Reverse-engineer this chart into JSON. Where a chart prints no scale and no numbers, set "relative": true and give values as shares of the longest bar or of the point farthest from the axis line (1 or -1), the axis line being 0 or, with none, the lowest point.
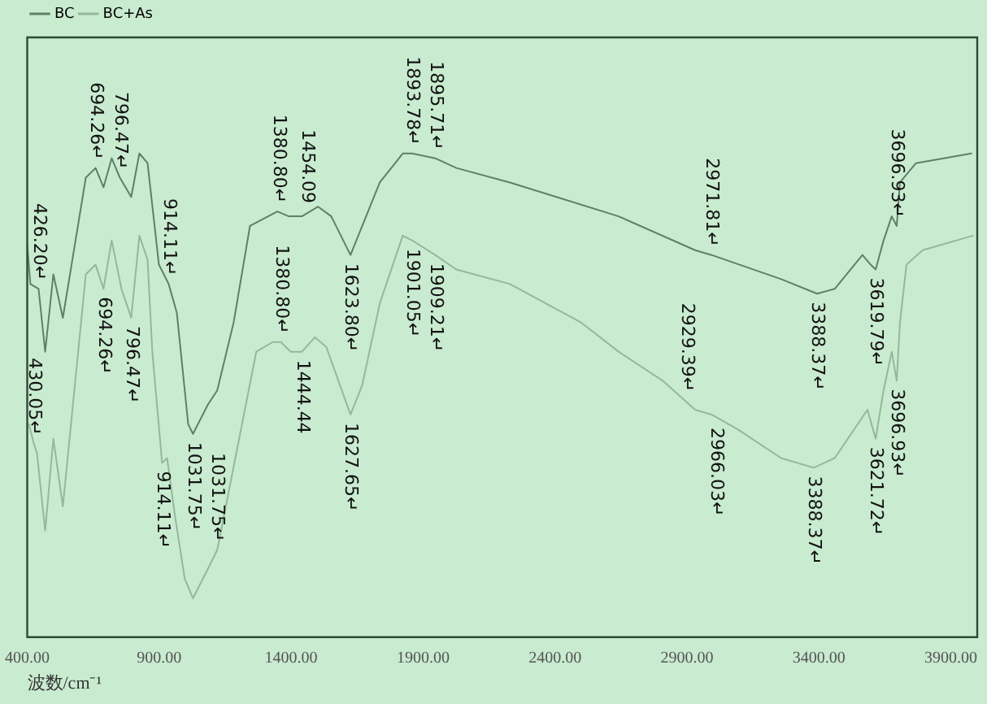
{
  "chart_data": {
    "type": "line",
    "xlabel": "波数/cm⁻¹",
    "relative": true,
    "legend": "top left",
    "marker": "none",
    "line_style": "solid",
    "grid": false,
    "xlim": [
      400,
      4000
    ],
    "xticks": [
      {
        "value": 400,
        "label": "400.00"
      },
      {
        "value": 900,
        "label": "900.00"
      },
      {
        "value": 1400,
        "label": "1400.00"
      },
      {
        "value": 1900,
        "label": "1900.00"
      },
      {
        "value": 2400,
        "label": "2400.00"
      },
      {
        "value": 2900,
        "label": "2900.00"
      },
      {
        "value": 3400,
        "label": "3400.00"
      },
      {
        "value": 3900,
        "label": "3900.00"
      }
    ],
    "series": [
      {
        "name": "BC",
        "color": "#5f8064",
        "x": [
          400,
          412,
          443,
          468,
          499,
          535,
          622,
          659,
          689,
          720,
          751,
          794,
          825,
          856,
          899,
          936,
          967,
          1010,
          1028,
          1084,
          1120,
          1182,
          1244,
          1348,
          1391,
          1441,
          1502,
          1552,
          1625,
          1736,
          1823,
          1859,
          1946,
          2026,
          2229,
          2641,
          2931,
          2993,
          3257,
          3393,
          3460,
          3565,
          3596,
          3615,
          3645,
          3676,
          3695,
          3707,
          3768,
          3978
        ],
        "values": [
          0.81,
          0.73,
          0.72,
          0.59,
          0.75,
          0.66,
          0.95,
          0.97,
          0.93,
          0.99,
          0.95,
          0.91,
          1.0,
          0.98,
          0.77,
          0.73,
          0.67,
          0.44,
          0.42,
          0.48,
          0.51,
          0.65,
          0.85,
          0.88,
          0.87,
          0.87,
          0.89,
          0.87,
          0.79,
          0.94,
          1.0,
          1.0,
          0.99,
          0.97,
          0.94,
          0.87,
          0.8,
          0.79,
          0.74,
          0.71,
          0.72,
          0.79,
          0.77,
          0.76,
          0.82,
          0.87,
          0.85,
          0.94,
          0.98,
          1.0
        ]
      },
      {
        "name": "BC+As",
        "color": "#95b89b",
        "x": [
          406,
          425,
          437,
          468,
          499,
          535,
          622,
          659,
          689,
          720,
          757,
          794,
          825,
          856,
          874,
          911,
          930,
          960,
          997,
          1028,
          1084,
          1120,
          1268,
          1330,
          1361,
          1398,
          1441,
          1490,
          1533,
          1625,
          1669,
          1736,
          1823,
          1859,
          1946,
          2026,
          2229,
          2500,
          2641,
          2808,
          2931,
          2993,
          3091,
          3257,
          3380,
          3460,
          3584,
          3615,
          3645,
          3676,
          3695,
          3707,
          3732,
          3793,
          3984
        ],
        "values": [
          0.44,
          0.4,
          0.38,
          0.22,
          0.41,
          0.27,
          0.75,
          0.77,
          0.72,
          0.82,
          0.72,
          0.66,
          0.83,
          0.78,
          0.59,
          0.36,
          0.37,
          0.25,
          0.12,
          0.08,
          0.14,
          0.18,
          0.59,
          0.61,
          0.61,
          0.59,
          0.59,
          0.62,
          0.6,
          0.46,
          0.52,
          0.69,
          0.83,
          0.82,
          0.79,
          0.76,
          0.73,
          0.65,
          0.59,
          0.53,
          0.47,
          0.46,
          0.43,
          0.37,
          0.35,
          0.37,
          0.47,
          0.41,
          0.51,
          0.59,
          0.53,
          0.65,
          0.77,
          0.8,
          0.83
        ]
      }
    ],
    "annotations": [
      {
        "text": "426.20↵",
        "x": 443,
        "y": 0.72
      },
      {
        "text": "694.26↵",
        "x": 659,
        "y": 0.97
      },
      {
        "text": "796.47↵",
        "x": 751,
        "y": 0.95
      },
      {
        "text": "914.11↵",
        "x": 936,
        "y": 0.73
      },
      {
        "text": "1031.75↵",
        "x": 1028,
        "y": 0.42
      },
      {
        "text": "1380.80↵",
        "x": 1354,
        "y": 0.88
      },
      {
        "text": "1454.09",
        "x": 1459,
        "y": 0.88
      },
      {
        "text": "1623.80↵",
        "x": 1625,
        "y": 0.79
      },
      {
        "text": "1893.78↵",
        "x": 1859,
        "y": 1.0
      },
      {
        "text": "1895.71↵",
        "x": 1946,
        "y": 0.99
      },
      {
        "text": "1901.05↵",
        "x": 1859,
        "y": 0.82
      },
      {
        "text": "1909.21↵",
        "x": 1946,
        "y": 0.79
      },
      {
        "text": "2971.81↵",
        "x": 2993,
        "y": 0.79
      },
      {
        "text": "3388.37↵",
        "x": 3393,
        "y": 0.71
      },
      {
        "text": "3619.79↵",
        "x": 3615,
        "y": 0.76
      },
      {
        "text": "3696.93↵",
        "x": 3695,
        "y": 0.85
      },
      {
        "text": "430.05↵",
        "x": 425,
        "y": 0.4
      },
      {
        "text": "694.26↵",
        "x": 689,
        "y": 0.72
      },
      {
        "text": "796.47↵",
        "x": 794,
        "y": 0.66
      },
      {
        "text": "914.11↵",
        "x": 911,
        "y": 0.36
      },
      {
        "text": "1031.75↵",
        "x": 1120,
        "y": 0.18
      },
      {
        "text": "1380.80↵",
        "x": 1361,
        "y": 0.61
      },
      {
        "text": "1444.44",
        "x": 1441,
        "y": 0.59
      },
      {
        "text": "1627.65↵",
        "x": 1625,
        "y": 0.46
      },
      {
        "text": "2929.39↵",
        "x": 2900,
        "y": 0.49
      },
      {
        "text": "2966.03↵",
        "x": 3010,
        "y": 0.45
      },
      {
        "text": "3388.37↵",
        "x": 3380,
        "y": 0.35
      },
      {
        "text": "3621.72↵",
        "x": 3615,
        "y": 0.41
      },
      {
        "text": "3696.93↵",
        "x": 3695,
        "y": 0.53
      }
    ]
  }
}
